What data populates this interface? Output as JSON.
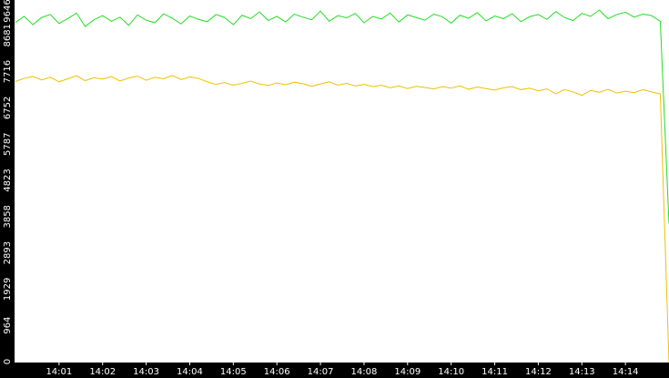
{
  "chart_data": {
    "type": "line",
    "xlim": [
      840,
      855
    ],
    "ylim": [
      0,
      9646
    ],
    "xticks": [
      {
        "value": 841,
        "label": "14:01"
      },
      {
        "value": 842,
        "label": "14:02"
      },
      {
        "value": 843,
        "label": "14:03"
      },
      {
        "value": 844,
        "label": "14:04"
      },
      {
        "value": 845,
        "label": "14:05"
      },
      {
        "value": 846,
        "label": "14:06"
      },
      {
        "value": 847,
        "label": "14:07"
      },
      {
        "value": 848,
        "label": "14:08"
      },
      {
        "value": 849,
        "label": "14:09"
      },
      {
        "value": 850,
        "label": "14:10"
      },
      {
        "value": 851,
        "label": "14:11"
      },
      {
        "value": 852,
        "label": "14:12"
      },
      {
        "value": 853,
        "label": "14:13"
      },
      {
        "value": 854,
        "label": "14:14"
      }
    ],
    "yticks": [
      0,
      964,
      1929,
      2893,
      3858,
      4823,
      5787,
      6752,
      7716,
      8681,
      9646
    ],
    "x": [
      840.0,
      840.2,
      840.4,
      840.6,
      840.8,
      841.0,
      841.2,
      841.4,
      841.6,
      841.8,
      842.0,
      842.2,
      842.4,
      842.6,
      842.8,
      843.0,
      843.2,
      843.4,
      843.6,
      843.8,
      844.0,
      844.2,
      844.4,
      844.6,
      844.8,
      845.0,
      845.2,
      845.4,
      845.6,
      845.8,
      846.0,
      846.2,
      846.4,
      846.6,
      846.8,
      847.0,
      847.2,
      847.4,
      847.6,
      847.8,
      848.0,
      848.2,
      848.4,
      848.6,
      848.8,
      849.0,
      849.2,
      849.4,
      849.6,
      849.8,
      850.0,
      850.2,
      850.4,
      850.6,
      850.8,
      851.0,
      851.2,
      851.4,
      851.6,
      851.8,
      852.0,
      852.2,
      852.4,
      852.6,
      852.8,
      853.0,
      853.2,
      853.4,
      853.6,
      853.8,
      854.0,
      854.2,
      854.4,
      854.6,
      854.8,
      855.0
    ],
    "series": [
      {
        "color": "#22dd22",
        "values": [
          9050,
          9210,
          8990,
          9180,
          9260,
          9020,
          9150,
          9300,
          8940,
          9120,
          9230,
          9080,
          9190,
          8970,
          9250,
          9110,
          9040,
          9280,
          9160,
          9010,
          9220,
          9130,
          9070,
          9260,
          9180,
          8990,
          9240,
          9150,
          9330,
          9100,
          9210,
          9060,
          9270,
          9190,
          9120,
          9350,
          9080,
          9230,
          9170,
          9290,
          9040,
          9210,
          9140,
          9300,
          9060,
          9250,
          9180,
          9110,
          9270,
          9200,
          9030,
          9240,
          9160,
          9310,
          9090,
          9220,
          9150,
          9280,
          9070,
          9200,
          9260,
          9130,
          9340,
          9180,
          9100,
          9290,
          9210,
          9380,
          9150,
          9260,
          9320,
          9190,
          9270,
          9230,
          9080,
          3700
        ]
      },
      {
        "color": "#f0c000",
        "values": [
          7480,
          7560,
          7610,
          7520,
          7590,
          7470,
          7550,
          7630,
          7500,
          7580,
          7540,
          7610,
          7490,
          7570,
          7620,
          7510,
          7590,
          7550,
          7640,
          7530,
          7600,
          7560,
          7470,
          7400,
          7450,
          7380,
          7430,
          7490,
          7410,
          7370,
          7440,
          7390,
          7460,
          7420,
          7350,
          7410,
          7470,
          7380,
          7430,
          7360,
          7400,
          7340,
          7380,
          7310,
          7360,
          7290,
          7350,
          7320,
          7280,
          7340,
          7300,
          7360,
          7270,
          7330,
          7290,
          7250,
          7310,
          7340,
          7260,
          7300,
          7230,
          7280,
          7150,
          7260,
          7200,
          7110,
          7240,
          7190,
          7270,
          7170,
          7220,
          7180,
          7260,
          7200,
          7150,
          0
        ]
      }
    ]
  }
}
